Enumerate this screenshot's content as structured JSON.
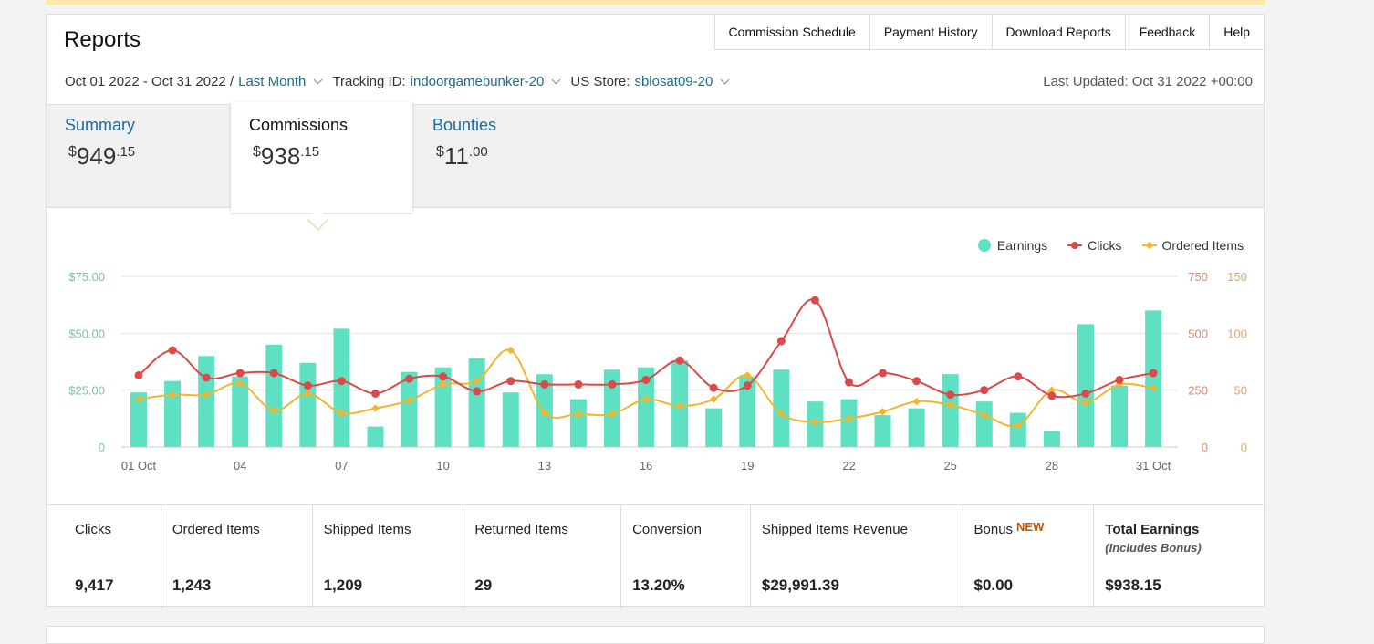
{
  "header": {
    "title": "Reports",
    "tabs": [
      "Commission Schedule",
      "Payment History",
      "Download Reports",
      "Feedback",
      "Help"
    ],
    "date_range": "Oct 01 2022 - Oct 31 2022 /",
    "period": "Last Month",
    "tracking_label": "Tracking ID:",
    "tracking_id": "indoorgamebunker-20",
    "store_label": "US Store:",
    "store_id": "sblosat09-20",
    "last_updated": "Last Updated: Oct 31 2022 +00:00"
  },
  "summary": {
    "items": [
      {
        "label": "Summary",
        "currency": "$",
        "whole": "949",
        "cents": ".15",
        "active": false
      },
      {
        "label": "Commissions",
        "currency": "$",
        "whole": "938",
        "cents": ".15",
        "active": true
      },
      {
        "label": "Bounties",
        "currency": "$",
        "whole": "11",
        "cents": ".00",
        "active": false
      }
    ]
  },
  "chart_data": {
    "type": "bar",
    "legend": [
      {
        "name": "Earnings",
        "color": "#5ee1c2",
        "marker": "circle"
      },
      {
        "name": "Clicks",
        "color": "#d94a4a",
        "marker": "circle"
      },
      {
        "name": "Ordered Items",
        "color": "#f0b632",
        "marker": "diamond"
      }
    ],
    "x_ticks": [
      {
        "day": 1,
        "label": "01 Oct"
      },
      {
        "day": 4,
        "label": "04"
      },
      {
        "day": 7,
        "label": "07"
      },
      {
        "day": 10,
        "label": "10"
      },
      {
        "day": 13,
        "label": "13"
      },
      {
        "day": 16,
        "label": "16"
      },
      {
        "day": 19,
        "label": "19"
      },
      {
        "day": 22,
        "label": "22"
      },
      {
        "day": 25,
        "label": "25"
      },
      {
        "day": 28,
        "label": "28"
      },
      {
        "day": 31,
        "label": "31 Oct"
      }
    ],
    "y_left_ticks": [
      "0",
      "$25.00",
      "$50.00",
      "$75.00"
    ],
    "y_mid_ticks": [
      "0",
      "250",
      "500",
      "750"
    ],
    "y_right_ticks": [
      "0",
      "50",
      "100",
      "150"
    ],
    "y_left_range": [
      0,
      75
    ],
    "y_mid_range": [
      0,
      750
    ],
    "y_right_range": [
      0,
      150
    ],
    "series": [
      {
        "name": "Earnings",
        "axis": "left",
        "values": [
          24,
          29,
          40,
          31,
          45,
          37,
          52,
          9,
          33,
          35,
          39,
          24,
          32,
          21,
          34,
          35,
          38,
          17,
          31,
          34,
          20,
          21,
          14,
          17,
          32,
          20,
          15,
          7,
          54,
          27,
          60
        ]
      },
      {
        "name": "Clicks",
        "axis": "mid",
        "values": [
          315,
          425,
          305,
          325,
          325,
          270,
          290,
          235,
          300,
          310,
          245,
          290,
          275,
          275,
          275,
          295,
          380,
          260,
          270,
          465,
          645,
          285,
          325,
          290,
          230,
          250,
          310,
          225,
          235,
          295,
          325
        ]
      },
      {
        "name": "Ordered Items",
        "axis": "right",
        "values": [
          42,
          46,
          46,
          56,
          32,
          47,
          30,
          34,
          41,
          55,
          58,
          85,
          30,
          29,
          29,
          42,
          36,
          42,
          63,
          29,
          22,
          25,
          31,
          40,
          37,
          28,
          19,
          50,
          39,
          55,
          52
        ]
      }
    ]
  },
  "metrics": [
    {
      "label": "Clicks",
      "value": "9,417"
    },
    {
      "label": "Ordered Items",
      "value": "1,243"
    },
    {
      "label": "Shipped Items",
      "value": "1,209"
    },
    {
      "label": "Returned Items",
      "value": "29"
    },
    {
      "label": "Conversion",
      "value": "13.20%"
    },
    {
      "label": "Shipped Items Revenue",
      "value": "$29,991.39"
    },
    {
      "label": "Bonus",
      "badge": "NEW",
      "value": "$0.00"
    },
    {
      "label": "Total Earnings",
      "sub": "(Includes Bonus)",
      "value": "$938.15"
    }
  ],
  "colors": {
    "earnings": "#5ee1c2",
    "clicks": "#d94a4a",
    "ordered": "#f0b632",
    "link": "#1a6ba0",
    "badge": "#c45500"
  }
}
